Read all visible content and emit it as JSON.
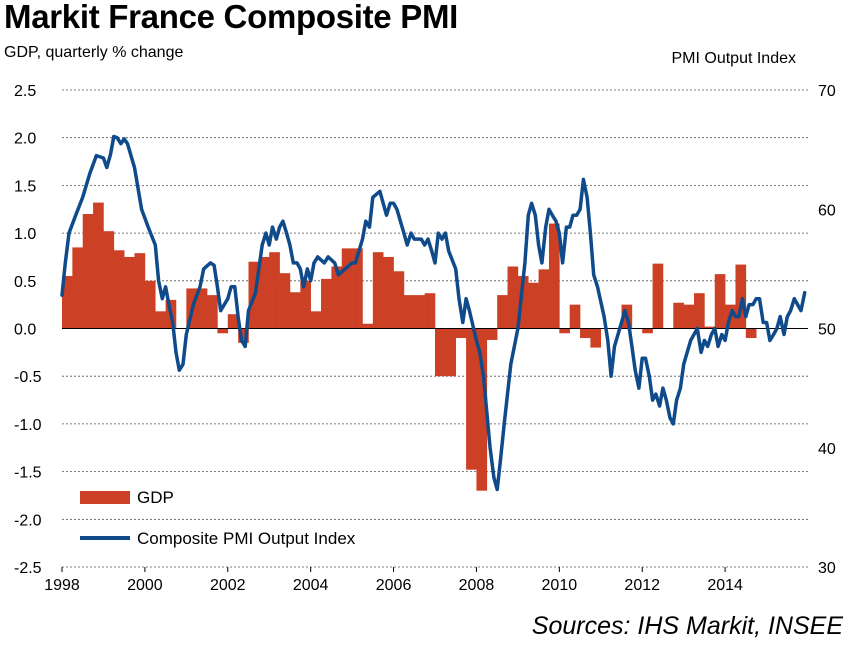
{
  "chart_data": {
    "type": "bar+line",
    "title": "Markit France Composite PMI",
    "ylabel_left": "GDP, quarterly % change",
    "ylabel_right": "PMI Output  Index",
    "source": "Sources: IHS Markit, INSEE",
    "ylim_left": [
      -2.5,
      2.5
    ],
    "ylim_right": [
      30,
      70
    ],
    "xlim": [
      1998,
      2016
    ],
    "yticks_left": [
      "2.5",
      "2.0",
      "1.5",
      "1.0",
      "0.5",
      "0.0",
      "-0.5",
      "-1.0",
      "-1.5",
      "-2.0",
      "-2.5"
    ],
    "yticks_right": [
      "70",
      "60",
      "50",
      "40",
      "30"
    ],
    "xticks": [
      "1998",
      "2000",
      "2002",
      "2004",
      "2006",
      "2008",
      "2010",
      "2012",
      "2014"
    ],
    "grid": true,
    "legend_placement": "bottom-left",
    "colors": {
      "gdp": "#cc4125",
      "pmi": "#0f4a8a"
    },
    "series": [
      {
        "name": "GDP",
        "kind": "bar",
        "x_start": 1998.0,
        "step": 0.25,
        "values": [
          0.55,
          0.85,
          1.2,
          1.32,
          1.02,
          0.82,
          0.75,
          0.79,
          0.5,
          0.18,
          0.3,
          0.0,
          0.42,
          0.42,
          0.35,
          -0.05,
          0.15,
          -0.15,
          0.7,
          0.75,
          0.8,
          0.58,
          0.38,
          0.5,
          0.18,
          0.52,
          0.65,
          0.84,
          0.84,
          0.05,
          0.8,
          0.75,
          0.6,
          0.35,
          0.35,
          0.37,
          -0.5,
          -0.5,
          -0.1,
          -1.48,
          -1.7,
          -0.12,
          0.35,
          0.65,
          0.55,
          0.48,
          0.62,
          1.1,
          -0.05,
          0.25,
          -0.1,
          -0.2,
          0.0,
          0.0,
          0.25,
          0.0,
          -0.05,
          0.68,
          0.0,
          0.27,
          0.25,
          0.37,
          0.02,
          0.57,
          0.25,
          0.67,
          -0.1,
          0.0
        ]
      },
      {
        "name": "Composite PMI Output Index",
        "kind": "line",
        "points": [
          [
            1998.0,
            52.8
          ],
          [
            1998.08,
            55.5
          ],
          [
            1998.17,
            58.0
          ],
          [
            1998.33,
            59.5
          ],
          [
            1998.5,
            61.0
          ],
          [
            1998.67,
            63.0
          ],
          [
            1998.83,
            64.5
          ],
          [
            1999.0,
            64.3
          ],
          [
            1999.08,
            63.5
          ],
          [
            1999.17,
            64.6
          ],
          [
            1999.25,
            66.1
          ],
          [
            1999.33,
            66.0
          ],
          [
            1999.42,
            65.5
          ],
          [
            1999.5,
            65.9
          ],
          [
            1999.58,
            65.5
          ],
          [
            1999.75,
            63.5
          ],
          [
            1999.92,
            60.0
          ],
          [
            2000.08,
            58.5
          ],
          [
            2000.25,
            57.0
          ],
          [
            2000.33,
            54.0
          ],
          [
            2000.42,
            52.5
          ],
          [
            2000.5,
            53.5
          ],
          [
            2000.58,
            52.0
          ],
          [
            2000.67,
            50.5
          ],
          [
            2000.75,
            48.0
          ],
          [
            2000.83,
            46.5
          ],
          [
            2000.92,
            47.0
          ],
          [
            2001.0,
            49.5
          ],
          [
            2001.17,
            52.0
          ],
          [
            2001.33,
            53.5
          ],
          [
            2001.42,
            55.0
          ],
          [
            2001.58,
            55.5
          ],
          [
            2001.67,
            55.3
          ],
          [
            2001.75,
            53.5
          ],
          [
            2001.83,
            51.5
          ],
          [
            2002.0,
            52.5
          ],
          [
            2002.08,
            53.5
          ],
          [
            2002.17,
            53.5
          ],
          [
            2002.25,
            51.0
          ],
          [
            2002.33,
            49.0
          ],
          [
            2002.42,
            48.5
          ],
          [
            2002.5,
            51.5
          ],
          [
            2002.67,
            53.0
          ],
          [
            2002.83,
            57.0
          ],
          [
            2002.92,
            58.0
          ],
          [
            2003.0,
            57.0
          ],
          [
            2003.08,
            58.5
          ],
          [
            2003.17,
            57.5
          ],
          [
            2003.25,
            58.5
          ],
          [
            2003.33,
            59.0
          ],
          [
            2003.42,
            58.0
          ],
          [
            2003.5,
            57.0
          ],
          [
            2003.58,
            55.5
          ],
          [
            2003.67,
            55.5
          ],
          [
            2003.75,
            55.0
          ],
          [
            2003.83,
            53.5
          ],
          [
            2003.92,
            55.0
          ],
          [
            2004.0,
            54.0
          ],
          [
            2004.08,
            55.5
          ],
          [
            2004.17,
            56.0
          ],
          [
            2004.33,
            55.5
          ],
          [
            2004.42,
            56.0
          ],
          [
            2004.58,
            55.5
          ],
          [
            2004.67,
            54.5
          ],
          [
            2004.83,
            55.0
          ],
          [
            2005.0,
            55.5
          ],
          [
            2005.08,
            55.5
          ],
          [
            2005.25,
            57.5
          ],
          [
            2005.33,
            59.0
          ],
          [
            2005.42,
            58.5
          ],
          [
            2005.5,
            61.0
          ],
          [
            2005.67,
            61.5
          ],
          [
            2005.75,
            60.5
          ],
          [
            2005.83,
            59.5
          ],
          [
            2005.92,
            60.5
          ],
          [
            2006.0,
            60.5
          ],
          [
            2006.08,
            60.0
          ],
          [
            2006.25,
            58.0
          ],
          [
            2006.33,
            57.0
          ],
          [
            2006.42,
            58.0
          ],
          [
            2006.5,
            57.5
          ],
          [
            2006.67,
            57.5
          ],
          [
            2006.75,
            57.0
          ],
          [
            2006.83,
            57.5
          ],
          [
            2006.92,
            56.5
          ],
          [
            2007.0,
            55.5
          ],
          [
            2007.08,
            58.0
          ],
          [
            2007.17,
            57.5
          ],
          [
            2007.25,
            58.0
          ],
          [
            2007.33,
            56.5
          ],
          [
            2007.5,
            55.0
          ],
          [
            2007.58,
            52.5
          ],
          [
            2007.67,
            50.5
          ],
          [
            2007.75,
            52.5
          ],
          [
            2007.83,
            51.5
          ],
          [
            2008.0,
            49.0
          ],
          [
            2008.08,
            48.0
          ],
          [
            2008.17,
            46.0
          ],
          [
            2008.25,
            43.0
          ],
          [
            2008.33,
            40.0
          ],
          [
            2008.42,
            37.5
          ],
          [
            2008.5,
            36.5
          ],
          [
            2008.58,
            39.0
          ],
          [
            2008.67,
            42.0
          ],
          [
            2008.75,
            44.5
          ],
          [
            2008.83,
            47.0
          ],
          [
            2009.0,
            50.0
          ],
          [
            2009.17,
            55.5
          ],
          [
            2009.25,
            59.5
          ],
          [
            2009.33,
            60.5
          ],
          [
            2009.42,
            59.5
          ],
          [
            2009.5,
            57.0
          ],
          [
            2009.58,
            55.5
          ],
          [
            2009.67,
            58.5
          ],
          [
            2009.75,
            60.0
          ],
          [
            2009.83,
            59.5
          ],
          [
            2009.92,
            59.0
          ],
          [
            2010.0,
            58.0
          ],
          [
            2010.08,
            55.5
          ],
          [
            2010.17,
            58.5
          ],
          [
            2010.25,
            58.5
          ],
          [
            2010.33,
            59.5
          ],
          [
            2010.42,
            59.5
          ],
          [
            2010.5,
            60.0
          ],
          [
            2010.58,
            62.5
          ],
          [
            2010.67,
            61.0
          ],
          [
            2010.75,
            58.0
          ],
          [
            2010.83,
            54.5
          ],
          [
            2010.92,
            53.5
          ],
          [
            2011.08,
            51.0
          ],
          [
            2011.17,
            49.0
          ],
          [
            2011.25,
            46.0
          ],
          [
            2011.33,
            48.5
          ],
          [
            2011.5,
            50.5
          ],
          [
            2011.58,
            51.5
          ],
          [
            2011.67,
            50.5
          ],
          [
            2011.75,
            48.5
          ],
          [
            2011.83,
            46.5
          ],
          [
            2011.92,
            45.0
          ],
          [
            2012.0,
            47.5
          ],
          [
            2012.08,
            47.5
          ],
          [
            2012.17,
            46.0
          ],
          [
            2012.25,
            44.0
          ],
          [
            2012.33,
            44.5
          ],
          [
            2012.42,
            43.5
          ],
          [
            2012.5,
            45.0
          ],
          [
            2012.58,
            44.0
          ],
          [
            2012.67,
            42.5
          ],
          [
            2012.75,
            42.0
          ],
          [
            2012.83,
            44.0
          ],
          [
            2012.92,
            45.0
          ],
          [
            2013.0,
            47.0
          ],
          [
            2013.17,
            49.0
          ],
          [
            2013.33,
            50.0
          ],
          [
            2013.42,
            48.0
          ],
          [
            2013.5,
            49.0
          ],
          [
            2013.58,
            48.5
          ],
          [
            2013.67,
            49.5
          ],
          [
            2013.75,
            50.0
          ],
          [
            2013.83,
            48.5
          ],
          [
            2013.92,
            49.5
          ],
          [
            2014.0,
            49.0
          ],
          [
            2014.08,
            50.5
          ],
          [
            2014.17,
            51.5
          ],
          [
            2014.25,
            51.0
          ],
          [
            2014.33,
            51.0
          ],
          [
            2014.42,
            52.5
          ],
          [
            2014.5,
            51.0
          ],
          [
            2014.58,
            52.0
          ],
          [
            2014.67,
            52.0
          ],
          [
            2014.75,
            52.5
          ],
          [
            2014.83,
            52.5
          ],
          [
            2014.92,
            50.5
          ],
          [
            2015.0,
            50.5
          ],
          [
            2015.08,
            49.0
          ],
          [
            2015.17,
            49.5
          ],
          [
            2015.25,
            50.0
          ],
          [
            2015.33,
            51.0
          ],
          [
            2015.42,
            49.5
          ],
          [
            2015.5,
            51.0
          ],
          [
            2015.58,
            51.5
          ],
          [
            2015.67,
            52.5
          ],
          [
            2015.75,
            52.0
          ],
          [
            2015.83,
            51.5
          ],
          [
            2015.92,
            53.0
          ]
        ]
      }
    ]
  }
}
